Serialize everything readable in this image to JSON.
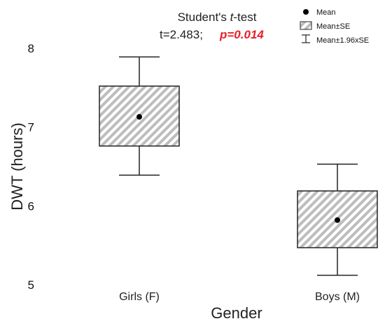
{
  "chart_data": {
    "type": "box",
    "title": "Student's t-test",
    "stat_line": {
      "t_text": "t=2.483;",
      "p_text": "p=0.014",
      "p_color": "#e8202a"
    },
    "xlabel": "Gender",
    "ylabel": "DWT (hours)",
    "ylim": [
      5,
      8
    ],
    "yticks": [
      5,
      6,
      7,
      8
    ],
    "categories": [
      "Girls (F)",
      "Boys (M)"
    ],
    "boxes": [
      {
        "category": "Girls (F)",
        "mean": 7.13,
        "se_low": 6.76,
        "se_high": 7.52,
        "ci_low": 6.39,
        "ci_high": 7.89
      },
      {
        "category": "Boys (M)",
        "mean": 5.82,
        "se_low": 5.47,
        "se_high": 6.19,
        "ci_low": 5.12,
        "ci_high": 6.53
      }
    ],
    "legend": [
      {
        "key": "mean",
        "label": "Mean"
      },
      {
        "key": "se",
        "label": "Mean±SE"
      },
      {
        "key": "ci",
        "label": "Mean±1.96xSE"
      }
    ],
    "legend_position": "top-right",
    "grid": false,
    "colors": {
      "box_hatch": "#b8b8b8",
      "stroke": "#222222",
      "mean_dot": "#000000"
    }
  }
}
